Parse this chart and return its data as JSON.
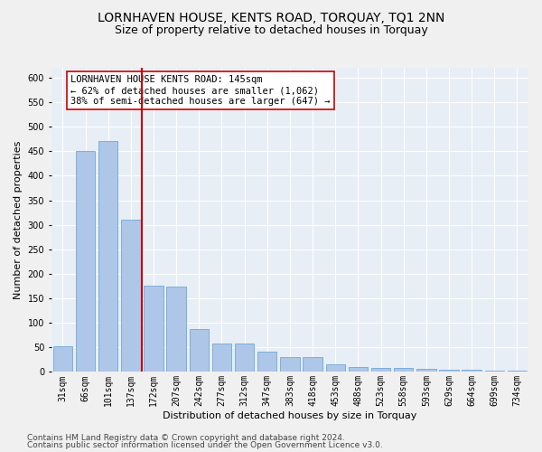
{
  "title": "LORNHAVEN HOUSE, KENTS ROAD, TORQUAY, TQ1 2NN",
  "subtitle": "Size of property relative to detached houses in Torquay",
  "xlabel": "Distribution of detached houses by size in Torquay",
  "ylabel": "Number of detached properties",
  "categories": [
    "31sqm",
    "66sqm",
    "101sqm",
    "137sqm",
    "172sqm",
    "207sqm",
    "242sqm",
    "277sqm",
    "312sqm",
    "347sqm",
    "383sqm",
    "418sqm",
    "453sqm",
    "488sqm",
    "523sqm",
    "558sqm",
    "593sqm",
    "629sqm",
    "664sqm",
    "699sqm",
    "734sqm"
  ],
  "values": [
    53,
    450,
    470,
    310,
    175,
    174,
    87,
    57,
    57,
    42,
    30,
    30,
    15,
    10,
    8,
    8,
    7,
    5,
    5,
    3,
    3
  ],
  "bar_color": "#aec6e8",
  "bar_edgecolor": "#5a9fd4",
  "vline_color": "#cc0000",
  "vline_x_index": 3,
  "annotation_text": "LORNHAVEN HOUSE KENTS ROAD: 145sqm\n← 62% of detached houses are smaller (1,062)\n38% of semi-detached houses are larger (647) →",
  "annotation_box_edgecolor": "#cc0000",
  "ylim": [
    0,
    620
  ],
  "yticks": [
    0,
    50,
    100,
    150,
    200,
    250,
    300,
    350,
    400,
    450,
    500,
    550,
    600
  ],
  "footnote1": "Contains HM Land Registry data © Crown copyright and database right 2024.",
  "footnote2": "Contains public sector information licensed under the Open Government Licence v3.0.",
  "background_color": "#e8eef5",
  "grid_color": "#ffffff",
  "title_fontsize": 10,
  "subtitle_fontsize": 9,
  "axis_label_fontsize": 8,
  "tick_fontsize": 7,
  "annotation_fontsize": 7.5,
  "footnote_fontsize": 6.5
}
